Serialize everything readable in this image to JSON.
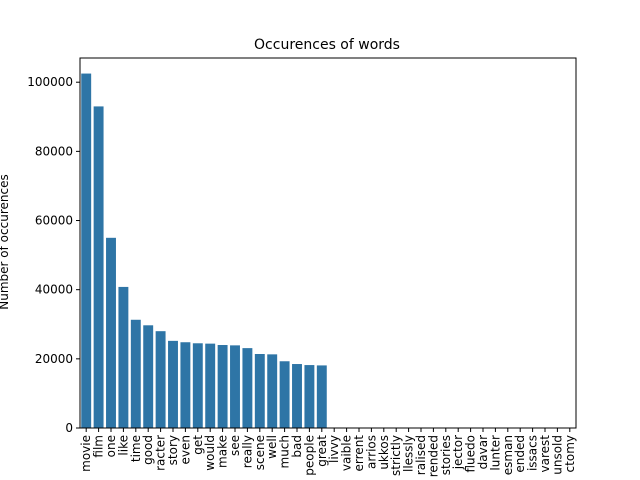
{
  "chart_data": {
    "type": "bar",
    "title": "Occurences of words",
    "xlabel": "",
    "ylabel": "Number of occurences",
    "ylim": [
      0,
      107000
    ],
    "yticks": [
      0,
      20000,
      40000,
      60000,
      80000,
      100000
    ],
    "ytick_labels": [
      "0",
      "20000",
      "40000",
      "60000",
      "80000",
      "100000"
    ],
    "bar_color": "#2e75a6",
    "grid": false,
    "categories": [
      "movie",
      "film",
      "one",
      "like",
      "time",
      "good",
      "racter",
      "story",
      "even",
      "get",
      "would",
      "make",
      "see",
      "really",
      "scene",
      "well",
      "much",
      "bad",
      "people",
      "great",
      "livvy",
      "vaible",
      "errent",
      "arrios",
      "ukkos",
      "strictly",
      "llessly",
      "ralised",
      "rended",
      "stories",
      "jector",
      "fluedo",
      "davar",
      "lunter",
      "esman",
      "ended",
      "issacs",
      "varest",
      "unsold",
      "ctomy"
    ],
    "values": [
      102500,
      93000,
      55000,
      40800,
      31300,
      29700,
      28000,
      25200,
      24800,
      24500,
      24400,
      24000,
      23900,
      23100,
      21400,
      21300,
      19300,
      18500,
      18200,
      18100,
      0,
      0,
      0,
      0,
      0,
      0,
      0,
      0,
      0,
      0,
      0,
      0,
      0,
      0,
      0,
      0,
      0,
      0,
      0,
      0
    ]
  }
}
